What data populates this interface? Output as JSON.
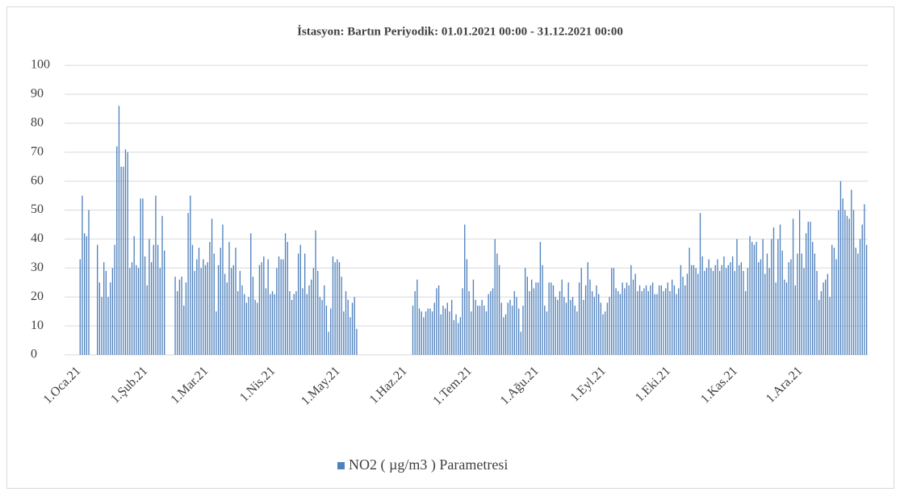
{
  "chart_data": {
    "type": "bar",
    "title": "İstasyon: Bartın Periyodik: 01.01.2021 00:00 - 31.12.2021 00:00",
    "categories": [
      "1.Oca.21",
      null,
      null,
      null,
      null,
      null,
      null,
      null,
      null,
      null,
      null,
      null,
      null,
      null,
      null,
      null,
      null,
      null,
      null,
      null,
      null,
      null,
      null,
      null,
      null,
      null,
      null,
      null,
      null,
      null,
      null,
      "1.Şub.21",
      null,
      null,
      null,
      null,
      null,
      null,
      null,
      null,
      null,
      null,
      null,
      null,
      null,
      null,
      null,
      null,
      null,
      null,
      null,
      null,
      null,
      null,
      null,
      null,
      null,
      null,
      null,
      "1.Mar.21",
      null,
      null,
      null,
      null,
      null,
      null,
      null,
      null,
      null,
      null,
      null,
      null,
      null,
      null,
      null,
      null,
      null,
      null,
      null,
      null,
      null,
      null,
      null,
      null,
      null,
      null,
      null,
      null,
      null,
      null,
      "1.Nis.21",
      null,
      null,
      null,
      null,
      null,
      null,
      null,
      null,
      null,
      null,
      null,
      null,
      null,
      null,
      null,
      null,
      null,
      null,
      null,
      null,
      null,
      null,
      null,
      null,
      null,
      null,
      null,
      null,
      null,
      "1.May.21",
      null,
      null,
      null,
      null,
      null,
      null,
      null,
      null,
      null,
      null,
      null,
      null,
      null,
      null,
      null,
      null,
      null,
      null,
      null,
      null,
      null,
      null,
      null,
      null,
      null,
      null,
      null,
      null,
      null,
      null,
      "1.Haz.21",
      null,
      null,
      null,
      null,
      null,
      null,
      null,
      null,
      null,
      null,
      null,
      null,
      null,
      null,
      null,
      null,
      null,
      null,
      null,
      null,
      null,
      null,
      null,
      null,
      null,
      null,
      null,
      null,
      null,
      "1.Tem.21",
      null,
      null,
      null,
      null,
      null,
      null,
      null,
      null,
      null,
      null,
      null,
      null,
      null,
      null,
      null,
      null,
      null,
      null,
      null,
      null,
      null,
      null,
      null,
      null,
      null,
      null,
      null,
      null,
      null,
      null,
      "1.Ağu.21",
      null,
      null,
      null,
      null,
      null,
      null,
      null,
      null,
      null,
      null,
      null,
      null,
      null,
      null,
      null,
      null,
      null,
      null,
      null,
      null,
      null,
      null,
      null,
      null,
      null,
      null,
      null,
      null,
      null,
      null,
      "1.Eyl.21",
      null,
      null,
      null,
      null,
      null,
      null,
      null,
      null,
      null,
      null,
      null,
      null,
      null,
      null,
      null,
      null,
      null,
      null,
      null,
      null,
      null,
      null,
      null,
      null,
      null,
      null,
      null,
      null,
      null,
      "1.Eki.21",
      null,
      null,
      null,
      null,
      null,
      null,
      null,
      null,
      null,
      null,
      null,
      null,
      null,
      null,
      null,
      null,
      null,
      null,
      null,
      null,
      null,
      null,
      null,
      null,
      null,
      null,
      null,
      null,
      null,
      null,
      "1.Kas.21",
      null,
      null,
      null,
      null,
      null,
      null,
      null,
      null,
      null,
      null,
      null,
      null,
      null,
      null,
      null,
      null,
      null,
      null,
      null,
      null,
      null,
      null,
      null,
      null,
      null,
      null,
      null,
      null,
      null,
      "1.Ara.21",
      null,
      null,
      null,
      null,
      null,
      null,
      null,
      null,
      null,
      null,
      null,
      null,
      null,
      null,
      null,
      null,
      null,
      null,
      null,
      null,
      null,
      null,
      null,
      null,
      null,
      null,
      null,
      null,
      null,
      null
    ],
    "series": [
      {
        "name": "NO2 ( µg/m3 ) Parametresi",
        "color": "#4f81bd",
        "values": [
          33,
          55,
          42,
          41,
          50,
          null,
          null,
          null,
          38,
          25,
          20,
          32,
          29,
          20,
          25,
          30,
          38,
          72,
          86,
          65,
          65,
          71,
          70,
          30,
          32,
          41,
          31,
          30,
          54,
          54,
          34,
          24,
          40,
          32,
          38,
          55,
          38,
          30,
          48,
          36,
          null,
          null,
          null,
          null,
          27,
          22,
          26,
          27,
          17,
          25,
          49,
          55,
          38,
          29,
          33,
          37,
          30,
          33,
          31,
          32,
          39,
          47,
          35,
          15,
          31,
          37,
          45,
          28,
          25,
          39,
          30,
          31,
          37,
          22,
          29,
          24,
          21,
          18,
          20,
          42,
          27,
          19,
          18,
          31,
          32,
          34,
          23,
          33,
          21,
          22,
          21,
          30,
          34,
          33,
          33,
          42,
          39,
          22,
          19,
          21,
          22,
          35,
          38,
          23,
          35,
          21,
          24,
          26,
          30,
          43,
          29,
          20,
          19,
          24,
          17,
          8,
          16,
          34,
          32,
          33,
          32,
          27,
          15,
          22,
          19,
          13,
          18,
          20,
          9,
          null,
          null,
          null,
          null,
          null,
          null,
          null,
          null,
          null,
          null,
          null,
          null,
          null,
          null,
          null,
          null,
          null,
          null,
          null,
          null,
          null,
          null,
          null,
          null,
          null,
          17,
          22,
          26,
          16,
          15,
          13,
          15,
          16,
          16,
          15,
          18,
          23,
          24,
          14,
          17,
          16,
          18,
          15,
          19,
          12,
          14,
          11,
          13,
          23,
          45,
          33,
          22,
          15,
          26,
          19,
          17,
          17,
          19,
          17,
          15,
          21,
          22,
          23,
          40,
          35,
          31,
          18,
          13,
          14,
          18,
          19,
          17,
          22,
          20,
          16,
          8,
          17,
          30,
          27,
          22,
          26,
          23,
          25,
          25,
          39,
          31,
          17,
          15,
          25,
          25,
          24,
          20,
          19,
          22,
          26,
          20,
          18,
          25,
          19,
          20,
          17,
          15,
          25,
          30,
          19,
          24,
          32,
          26,
          22,
          20,
          24,
          21,
          18,
          14,
          15,
          18,
          20,
          30,
          30,
          23,
          22,
          21,
          25,
          23,
          25,
          24,
          31,
          26,
          28,
          22,
          24,
          22,
          23,
          24,
          22,
          24,
          25,
          21,
          21,
          24,
          24,
          22,
          23,
          25,
          22,
          26,
          24,
          21,
          23,
          31,
          27,
          24,
          28,
          37,
          31,
          31,
          30,
          28,
          49,
          34,
          29,
          30,
          33,
          30,
          29,
          31,
          33,
          29,
          31,
          34,
          30,
          31,
          32,
          34,
          29,
          40,
          31,
          32,
          29,
          22,
          30,
          41,
          39,
          38,
          39,
          32,
          33,
          40,
          28,
          35,
          30,
          40,
          44,
          25,
          40,
          45,
          36,
          26,
          25,
          32,
          33,
          47,
          24,
          35,
          50,
          35,
          30,
          42,
          46,
          46,
          39,
          35,
          29,
          19,
          22,
          25,
          26,
          28,
          20,
          38,
          37,
          33,
          50,
          60,
          54,
          50,
          48,
          47,
          57,
          50,
          37,
          35,
          40,
          45,
          52,
          38
        ]
      }
    ],
    "ylim": [
      0,
      100
    ],
    "yticks": [
      0,
      10,
      20,
      30,
      40,
      50,
      60,
      70,
      80,
      90,
      100
    ],
    "grid": true,
    "legend": "bottom"
  }
}
